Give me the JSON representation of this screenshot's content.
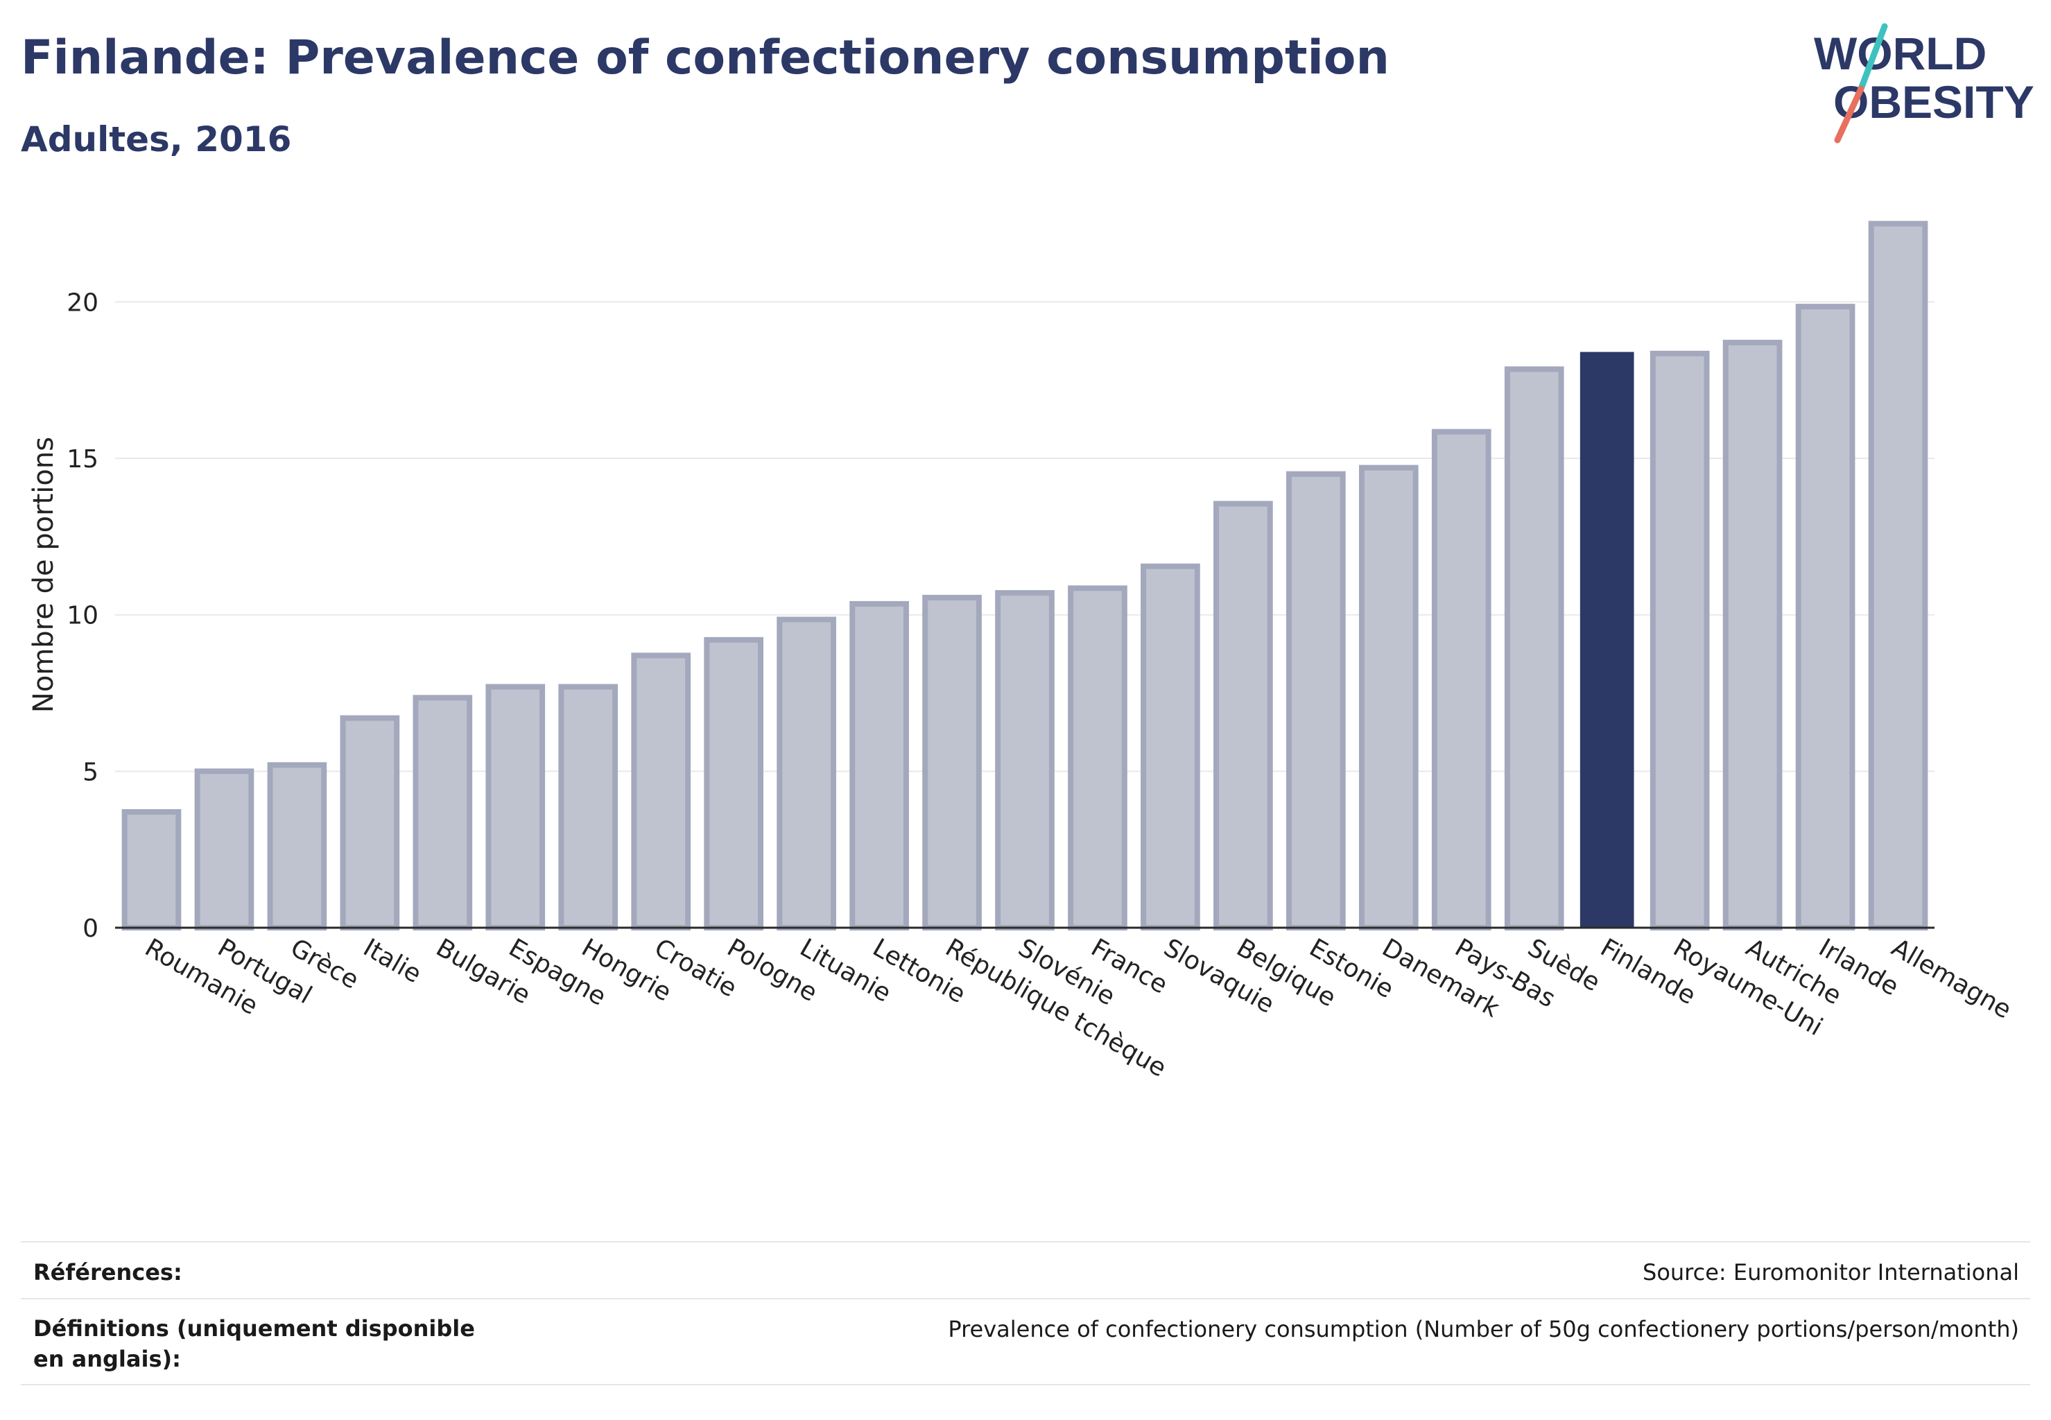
{
  "header": {
    "title": "Finlande: Prevalence of confectionery consumption",
    "subtitle": "Adultes, 2016"
  },
  "logo": {
    "line1": "WORLD",
    "line2": "OBESITY",
    "colors": {
      "text": "#2c3866",
      "slash_teal": "#3fc1c0",
      "slash_coral": "#e8705e"
    }
  },
  "chart_data": {
    "type": "bar",
    "title": "",
    "xlabel": "",
    "ylabel": "Nombre de portions",
    "ylim": [
      0,
      23
    ],
    "yticks": [
      0,
      5,
      10,
      15,
      20
    ],
    "grid": true,
    "highlight": "Finlande",
    "colors": {
      "bar": "#bfc3d0",
      "bar_border": "#a3a8bd",
      "highlight": "#2c3866",
      "grid": "#e9e9e9",
      "axis": "#2b2b2b"
    },
    "categories": [
      "Roumanie",
      "Portugal",
      "Grèce",
      "Italie",
      "Bulgarie",
      "Espagne",
      "Hongrie",
      "Croatie",
      "Pologne",
      "Lituanie",
      "Lettonie",
      "République tchèque",
      "Slovénie",
      "France",
      "Slovaquie",
      "Belgique",
      "Estonie",
      "Danemark",
      "Pays-Bas",
      "Suède",
      "Finlande",
      "Royaume-Uni",
      "Autriche",
      "Irlande",
      "Allemagne"
    ],
    "values": [
      3.7,
      5.0,
      5.2,
      6.7,
      7.35,
      7.7,
      7.7,
      8.7,
      9.2,
      9.85,
      10.35,
      10.55,
      10.7,
      10.85,
      11.55,
      13.55,
      14.5,
      14.7,
      15.85,
      17.85,
      18.4,
      18.35,
      18.7,
      19.85,
      22.5
    ]
  },
  "footer": {
    "references_label": "Références:",
    "references_value": "Source: Euromonitor International",
    "definitions_label": "Définitions (uniquement disponible en anglais):",
    "definitions_value": "Prevalence of confectionery consumption (Number of 50g confectionery portions/person/month)"
  }
}
